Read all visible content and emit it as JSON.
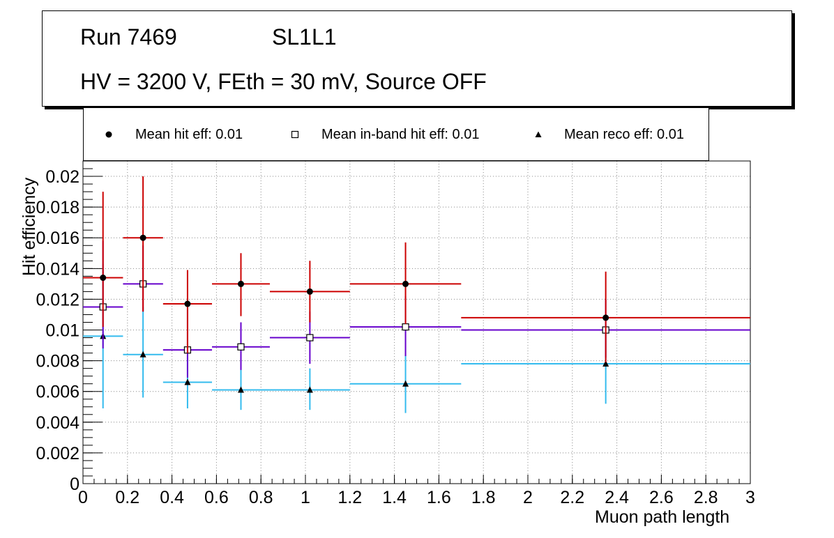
{
  "title": {
    "run": "Run 7469",
    "layer": "SL1L1",
    "conditions": "HV = 3200 V, FEth = 30 mV, Source OFF"
  },
  "chart_data": {
    "type": "scatter",
    "xlabel": "Muon path length",
    "ylabel": "Hit efficiency",
    "xlim": [
      0,
      3
    ],
    "ylim": [
      0,
      0.021
    ],
    "x_ticks": [
      "0",
      "0.2",
      "0.4",
      "0.6",
      "0.8",
      "1",
      "1.2",
      "1.4",
      "1.6",
      "1.8",
      "2",
      "2.2",
      "2.4",
      "2.6",
      "2.8",
      "3"
    ],
    "y_ticks": [
      "0",
      "0.002",
      "0.004",
      "0.006",
      "0.008",
      "0.01",
      "0.012",
      "0.014",
      "0.016",
      "0.018",
      "0.02"
    ],
    "grid": true,
    "legend_position": "top",
    "series": [
      {
        "name": "Mean hit  eff: 0.01",
        "marker": "filled-circle",
        "color": "#cc0000",
        "points": [
          {
            "x": 0.09,
            "y": 0.0134,
            "xlo": 0.0,
            "xhi": 0.18,
            "ylo": 0.0102,
            "yhi": 0.019
          },
          {
            "x": 0.27,
            "y": 0.016,
            "xlo": 0.18,
            "xhi": 0.36,
            "ylo": 0.0112,
            "yhi": 0.02
          },
          {
            "x": 0.47,
            "y": 0.0117,
            "xlo": 0.36,
            "xhi": 0.58,
            "ylo": 0.0085,
            "yhi": 0.0139
          },
          {
            "x": 0.71,
            "y": 0.013,
            "xlo": 0.58,
            "xhi": 0.84,
            "ylo": 0.0109,
            "yhi": 0.015
          },
          {
            "x": 1.02,
            "y": 0.0125,
            "xlo": 0.84,
            "xhi": 1.2,
            "ylo": 0.0105,
            "yhi": 0.0145
          },
          {
            "x": 1.45,
            "y": 0.013,
            "xlo": 1.2,
            "xhi": 1.7,
            "ylo": 0.0104,
            "yhi": 0.0157
          },
          {
            "x": 2.35,
            "y": 0.0108,
            "xlo": 1.7,
            "xhi": 3.0,
            "ylo": 0.0079,
            "yhi": 0.0138
          }
        ]
      },
      {
        "name": "Mean in-band hit eff: 0.01",
        "marker": "open-square",
        "color": "#6600cc",
        "points": [
          {
            "x": 0.09,
            "y": 0.0115,
            "xlo": 0.0,
            "xhi": 0.18,
            "ylo": 0.0088,
            "yhi": 0.0158
          },
          {
            "x": 0.27,
            "y": 0.013,
            "xlo": 0.18,
            "xhi": 0.36,
            "ylo": 0.0112,
            "yhi": 0.0155
          },
          {
            "x": 0.47,
            "y": 0.0087,
            "xlo": 0.36,
            "xhi": 0.58,
            "ylo": 0.0069,
            "yhi": 0.0114
          },
          {
            "x": 0.71,
            "y": 0.0089,
            "xlo": 0.58,
            "xhi": 0.84,
            "ylo": 0.0074,
            "yhi": 0.0105
          },
          {
            "x": 1.02,
            "y": 0.0095,
            "xlo": 0.84,
            "xhi": 1.2,
            "ylo": 0.0078,
            "yhi": 0.0112
          },
          {
            "x": 1.45,
            "y": 0.0102,
            "xlo": 1.2,
            "xhi": 1.7,
            "ylo": 0.0083,
            "yhi": 0.0122
          },
          {
            "x": 2.35,
            "y": 0.01,
            "xlo": 1.7,
            "xhi": 3.0,
            "ylo": 0.0082,
            "yhi": 0.012
          }
        ]
      },
      {
        "name": "Mean reco eff: 0.01",
        "marker": "filled-triangle",
        "color": "#33bbee",
        "points": [
          {
            "x": 0.09,
            "y": 0.0096,
            "xlo": 0.0,
            "xhi": 0.18,
            "ylo": 0.0049,
            "yhi": 0.0143
          },
          {
            "x": 0.27,
            "y": 0.0084,
            "xlo": 0.18,
            "xhi": 0.36,
            "ylo": 0.0056,
            "yhi": 0.0115
          },
          {
            "x": 0.47,
            "y": 0.0066,
            "xlo": 0.36,
            "xhi": 0.58,
            "ylo": 0.0049,
            "yhi": 0.0083
          },
          {
            "x": 0.71,
            "y": 0.0061,
            "xlo": 0.58,
            "xhi": 0.84,
            "ylo": 0.0048,
            "yhi": 0.0075
          },
          {
            "x": 1.02,
            "y": 0.0061,
            "xlo": 0.84,
            "xhi": 1.2,
            "ylo": 0.0048,
            "yhi": 0.0075
          },
          {
            "x": 1.45,
            "y": 0.0065,
            "xlo": 1.2,
            "xhi": 1.7,
            "ylo": 0.0046,
            "yhi": 0.0084
          },
          {
            "x": 2.35,
            "y": 0.0078,
            "xlo": 1.7,
            "xhi": 3.0,
            "ylo": 0.0052,
            "yhi": 0.0104
          }
        ]
      }
    ]
  }
}
